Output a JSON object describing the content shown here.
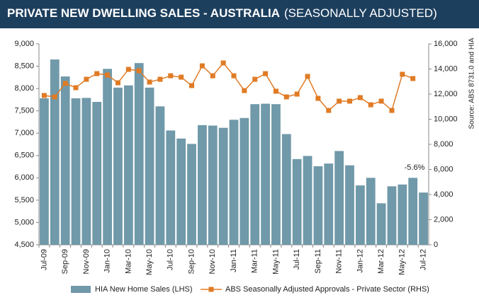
{
  "chart_data": {
    "type": "bar_line",
    "title": "PRIVATE NEW DWELLING SALES -  AUSTRALIA",
    "subtitle": "(SEASONALLY ADJUSTED)",
    "source": "Source: ABS 8731.0 and HIA",
    "annotations": [
      {
        "text": "-5.6%"
      }
    ],
    "categories": [
      "Jul-09",
      null,
      "Sep-09",
      null,
      "Nov-09",
      null,
      "Jan-10",
      null,
      "Mar-10",
      null,
      "May-10",
      null,
      "Jul-10",
      null,
      "Sep-10",
      null,
      "Nov-10",
      null,
      "Jan-11",
      null,
      "Mar-11",
      null,
      "May-11",
      null,
      "Jul-11",
      null,
      "Sep-11",
      null,
      "Nov-11",
      null,
      "Jan-12",
      null,
      "Mar-12",
      null,
      "May-12",
      null,
      "Jul-12"
    ],
    "series": [
      {
        "name": "HIA New Home Sales (LHS)",
        "color": "#7099a9",
        "axis": "y",
        "values": [
          7780,
          8650,
          8270,
          7780,
          7790,
          7700,
          8440,
          8020,
          8070,
          8570,
          8020,
          7600,
          7060,
          6880,
          6760,
          7180,
          7170,
          7120,
          7300,
          7340,
          7650,
          7660,
          7650,
          6980,
          6420,
          6490,
          6260,
          6320,
          6600,
          6280,
          5830,
          6000,
          5430,
          5810,
          5850,
          6000,
          5670
        ]
      },
      {
        "name": "ABS Seasonally Adjusted Approvals - Private Sector (RHS)",
        "color": "#e07b25",
        "axis": "y2",
        "values": [
          11890,
          11780,
          12850,
          12510,
          13180,
          13630,
          13520,
          12900,
          13970,
          13860,
          12960,
          13180,
          13460,
          13350,
          12680,
          14250,
          13460,
          14480,
          13460,
          12280,
          13180,
          13630,
          12230,
          11780,
          12000,
          13410,
          11660,
          10700,
          11440,
          11440,
          11720,
          11150,
          11440,
          10700,
          13580,
          13240,
          null
        ]
      }
    ],
    "ylim": [
      4500,
      9000
    ],
    "yticks": [
      {
        "value": 4500,
        "label": "4,500"
      },
      {
        "value": 5000,
        "label": "5,000"
      },
      {
        "value": 5500,
        "label": "5,500"
      },
      {
        "value": 6000,
        "label": "6,000"
      },
      {
        "value": 6500,
        "label": "6,500"
      },
      {
        "value": 7000,
        "label": "7,000"
      },
      {
        "value": 7500,
        "label": "7,500"
      },
      {
        "value": 8000,
        "label": "8,000"
      },
      {
        "value": 8500,
        "label": "8,500"
      },
      {
        "value": 9000,
        "label": "9,000"
      }
    ],
    "y2lim": [
      0,
      16000
    ],
    "y2ticks": [
      0,
      {
        "value": 2000,
        "label": "2,000"
      },
      {
        "value": 4000,
        "label": "4,000"
      },
      {
        "value": 6000,
        "label": "6,000"
      },
      {
        "value": 8000,
        "label": "8,000"
      },
      {
        "value": 10000,
        "label": "10,000"
      },
      {
        "value": 12000,
        "label": "12,000"
      },
      {
        "value": 14000,
        "label": "14,000"
      },
      {
        "value": 16000,
        "label": "16,000"
      }
    ],
    "grid": false
  }
}
